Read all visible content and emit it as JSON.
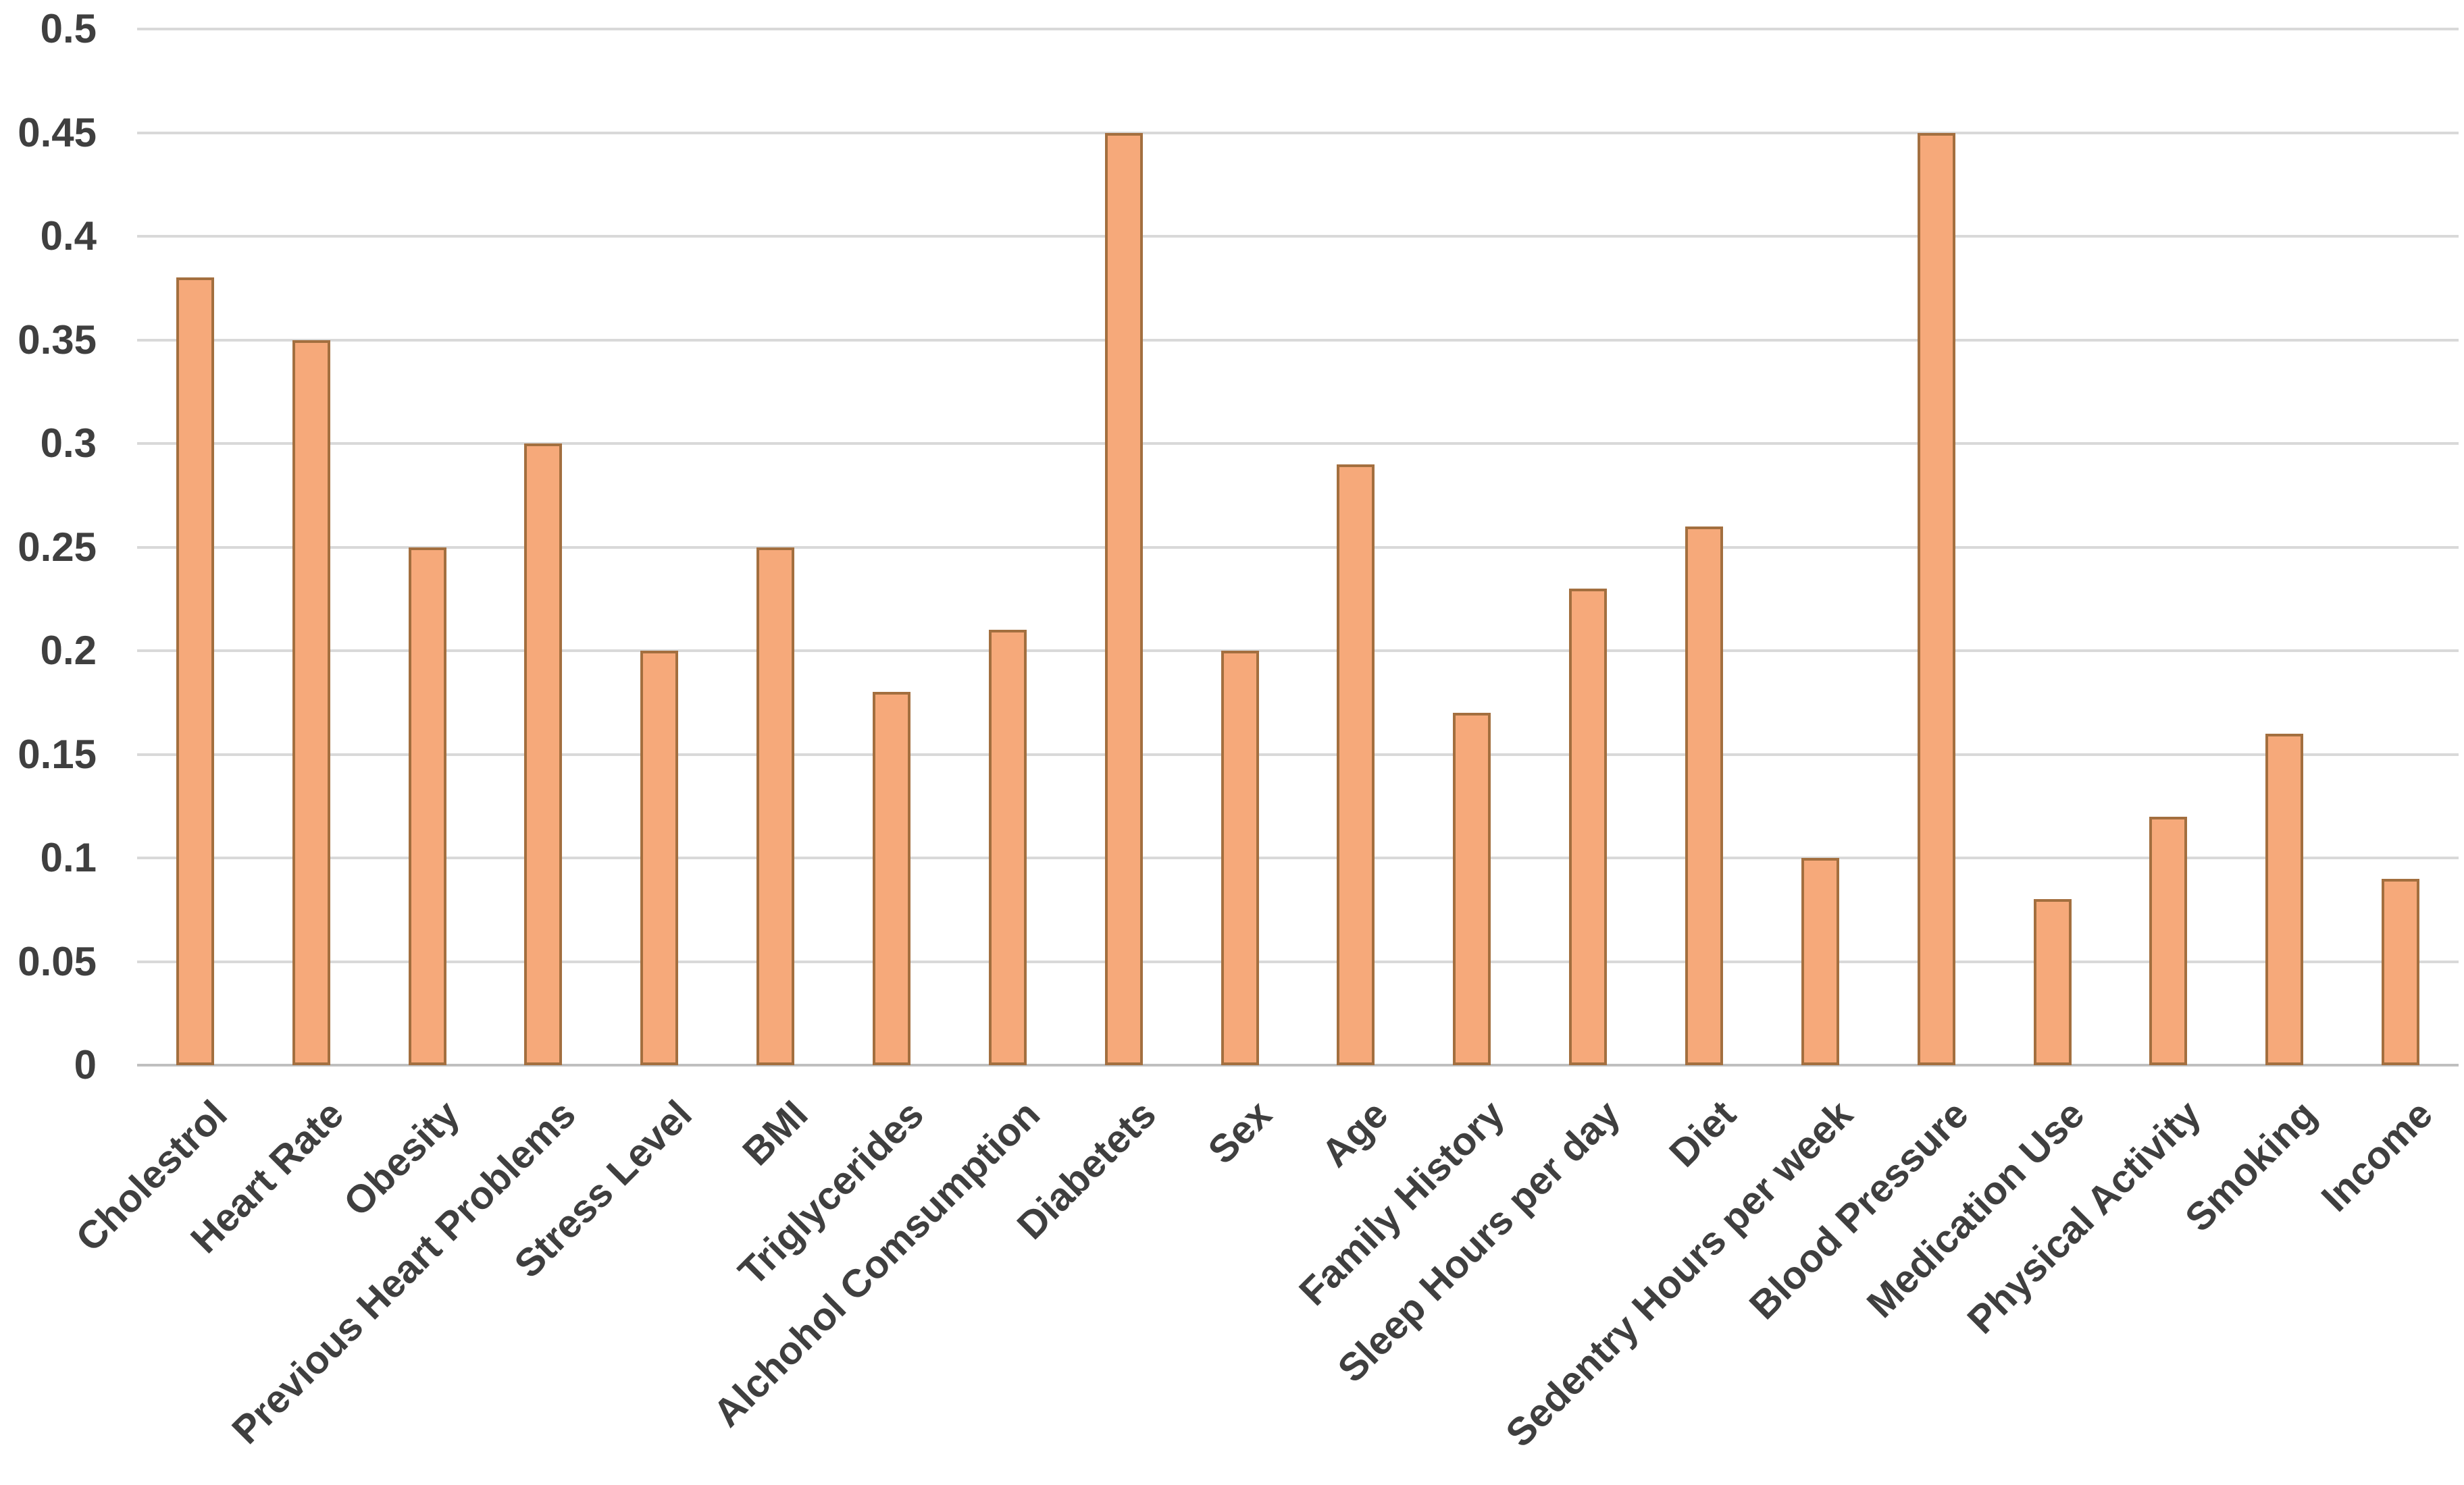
{
  "chart_data": {
    "type": "bar",
    "title": "",
    "xlabel": "",
    "ylabel": "",
    "categories": [
      "Cholestrol",
      "Heart Rate",
      "Obesity",
      "Previous Heart Problems",
      "Stress Level",
      "BMI",
      "Triglycerides",
      "Alchohol Comsumption",
      "Diabetets",
      "Sex",
      "Age",
      "Family History",
      "Sleep Hours per day",
      "Diet",
      "Sedentry Hours per week",
      "Blood Pressure",
      "Medication Use",
      "Physical Activity",
      "Smoking",
      "Income"
    ],
    "values": [
      0.38,
      0.35,
      0.25,
      0.3,
      0.2,
      0.25,
      0.18,
      0.21,
      0.45,
      0.2,
      0.29,
      0.17,
      0.23,
      0.26,
      0.1,
      0.45,
      0.08,
      0.12,
      0.16,
      0.09
    ],
    "ylim": [
      0,
      0.5
    ],
    "ytick_step": 0.05,
    "yticks": [
      0.5,
      0.45,
      0.4,
      0.35,
      0.3,
      0.25,
      0.2,
      0.15,
      0.1,
      0.05,
      0
    ],
    "ytick_labels": [
      "0.5",
      "0.45",
      "0.4",
      "0.35",
      "0.3",
      "0.25",
      "0.2",
      "0.15",
      "0.1",
      "0.05",
      "0"
    ],
    "grid": true,
    "legend": null,
    "colors": {
      "bar_fill": "#F6A97A",
      "bar_border": "#A36F3F",
      "gridline": "#D9D9D9",
      "baseline": "#BFBFBF",
      "label_text": "#3F3F3F",
      "background": "#FFFFFF"
    }
  }
}
